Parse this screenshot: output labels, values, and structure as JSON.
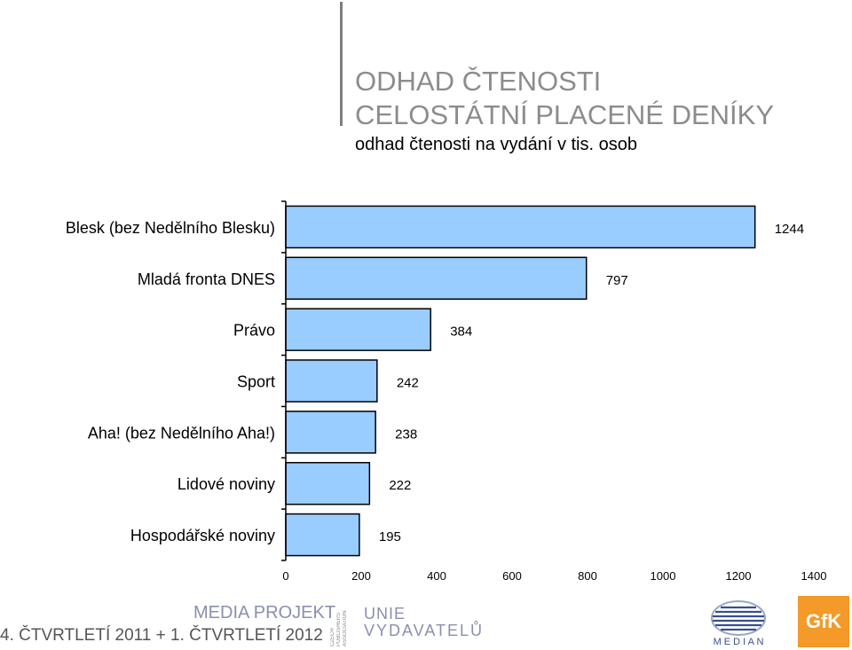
{
  "header": {
    "title_line1": "ODHAD ČTENOSTI",
    "title_line2": "CELOSTÁTNÍ PLACENÉ DENÍKY",
    "subtitle": "odhad čtenosti na vydání v tis. osob"
  },
  "chart_data": {
    "type": "bar",
    "orientation": "horizontal",
    "categories": [
      "Blesk (bez Nedělního Blesku)",
      "Mladá fronta DNES",
      "Právo",
      "Sport",
      "Aha! (bez Nedělního Aha!)",
      "Lidové noviny",
      "Hospodářské noviny"
    ],
    "values": [
      1244,
      797,
      384,
      242,
      238,
      222,
      195
    ],
    "xlim": [
      0,
      1400
    ],
    "xticks": [
      "0",
      "200",
      "400",
      "600",
      "800",
      "1000",
      "1200",
      "1400"
    ],
    "bar_color": "#99ccff",
    "grid": false
  },
  "footer": {
    "period": "4. ČTVRTLETÍ 2011 + 1. ČTVRTLETÍ 2012",
    "media_projekt": "MEDIA PROJEKT",
    "cpa_text": [
      "CZECH",
      "PUBLISHERS",
      "ASSOCIATION"
    ],
    "unie_line1": "UNIE",
    "unie_line2": "VYDAVATELŮ",
    "median_text": "M E D I A N",
    "gfk_text": "GfK"
  }
}
